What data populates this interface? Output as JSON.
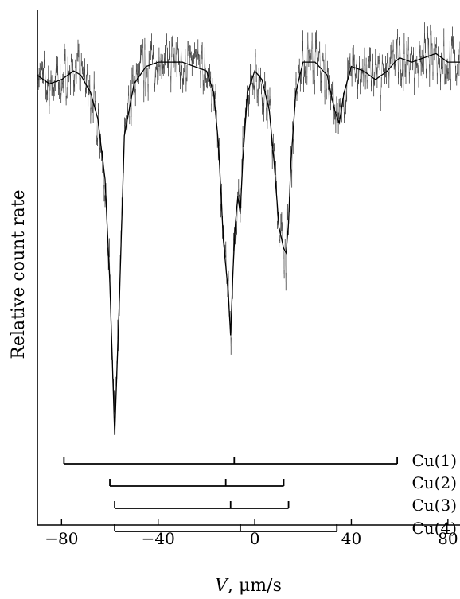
{
  "chart_data": {
    "type": "line",
    "title": "",
    "xlabel_var": "V",
    "xlabel_unit": ",  μm/s",
    "ylabel": "Relative count rate",
    "xlim": [
      -90,
      85
    ],
    "ylim": [
      0.0,
      1.0
    ],
    "x_ticks": [
      -80,
      -40,
      0,
      40,
      80
    ],
    "x_tick_labels": [
      "−80",
      "−40",
      "0",
      "40",
      "80"
    ],
    "y_ticks_visible": false,
    "grid": false,
    "legend": "none",
    "fit_curve": {
      "name": "",
      "baseline": 0.94,
      "x": [
        -90,
        -85,
        -80,
        -75,
        -72,
        -68,
        -65,
        -62,
        -60,
        -58,
        -56,
        -54,
        -50,
        -45,
        -40,
        -35,
        -30,
        -25,
        -20,
        -17,
        -15,
        -13,
        -11,
        -10,
        -9,
        -8,
        -7,
        -6,
        -5,
        -3,
        0,
        3,
        6,
        8,
        10,
        12,
        13,
        14,
        15,
        17,
        20,
        25,
        30,
        33,
        35,
        37,
        40,
        45,
        50,
        55,
        58,
        60,
        65,
        70,
        75,
        80,
        85
      ],
      "y": [
        0.9,
        0.88,
        0.89,
        0.91,
        0.9,
        0.86,
        0.8,
        0.66,
        0.42,
        0.07,
        0.39,
        0.76,
        0.88,
        0.92,
        0.93,
        0.93,
        0.93,
        0.92,
        0.91,
        0.86,
        0.74,
        0.52,
        0.4,
        0.3,
        0.45,
        0.56,
        0.62,
        0.58,
        0.7,
        0.86,
        0.91,
        0.89,
        0.82,
        0.7,
        0.55,
        0.5,
        0.49,
        0.56,
        0.7,
        0.86,
        0.93,
        0.93,
        0.9,
        0.82,
        0.79,
        0.86,
        0.92,
        0.91,
        0.89,
        0.91,
        0.93,
        0.94,
        0.93,
        0.94,
        0.95,
        0.93,
        0.93
      ]
    },
    "sites": [
      {
        "label": "Cu(1)",
        "start": -79,
        "end": 59,
        "center": -8.5
      },
      {
        "label": "Cu(2)",
        "start": -60,
        "end": 12,
        "center": -12
      },
      {
        "label": "Cu(3)",
        "start": -58,
        "end": 14,
        "center": -10
      },
      {
        "label": "Cu(4)",
        "start": -58,
        "end": 34,
        "center": -6
      }
    ]
  }
}
